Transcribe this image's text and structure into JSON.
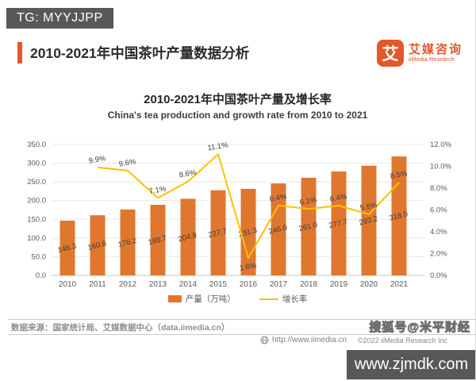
{
  "header": {
    "tg_badge": "TG: MYYJJPP",
    "section_title": "2010-2021年中国茶叶产量数据分析"
  },
  "logo": {
    "mark": "艾",
    "name_cn": "艾媒咨询",
    "name_en": "iiMedia Research",
    "brand_color": "#e2572b"
  },
  "chart_data": {
    "type": "bar",
    "title": "2010-2021年中国茶叶产量及增长率",
    "subtitle": "China's tea production and growth rate from 2010 to 2021",
    "categories": [
      "2010",
      "2011",
      "2012",
      "2013",
      "2014",
      "2015",
      "2016",
      "2017",
      "2018",
      "2019",
      "2020",
      "2021"
    ],
    "series": [
      {
        "name": "产量（万吨）",
        "type": "bar",
        "color": "#e0772e",
        "values": [
          146.3,
          160.8,
          176.2,
          188.7,
          204.9,
          227.7,
          231.3,
          246.0,
          261.0,
          277.7,
          293.2,
          318.0
        ]
      },
      {
        "name": "增长率",
        "type": "line",
        "color": "#ffc000",
        "values": [
          null,
          9.9,
          9.6,
          7.1,
          8.6,
          11.1,
          1.6,
          6.4,
          6.1,
          6.4,
          5.6,
          8.5
        ]
      }
    ],
    "left_axis": {
      "min": 0,
      "max": 350,
      "step": 50
    },
    "right_axis": {
      "min": 0,
      "max": 12,
      "step": 2
    },
    "left_ticks": [
      "0.0",
      "50.0",
      "100.0",
      "150.0",
      "200.0",
      "250.0",
      "300.0",
      "350.0"
    ],
    "right_ticks": [
      "0.0%",
      "2.0%",
      "4.0%",
      "6.0%",
      "8.0%",
      "10.0%",
      "12.0%"
    ],
    "grid": true,
    "legend_position": "bottom"
  },
  "footer": {
    "source": "数据来源：国家统计局、艾媒数据中心（data.iimedia.cn）",
    "website": "http://www.iimedia.cn",
    "copyright": "©2022 iiMedia Research Inc",
    "watermark": "搜狐号@米平财经",
    "watermark_box": "www.zjmdk.com"
  }
}
